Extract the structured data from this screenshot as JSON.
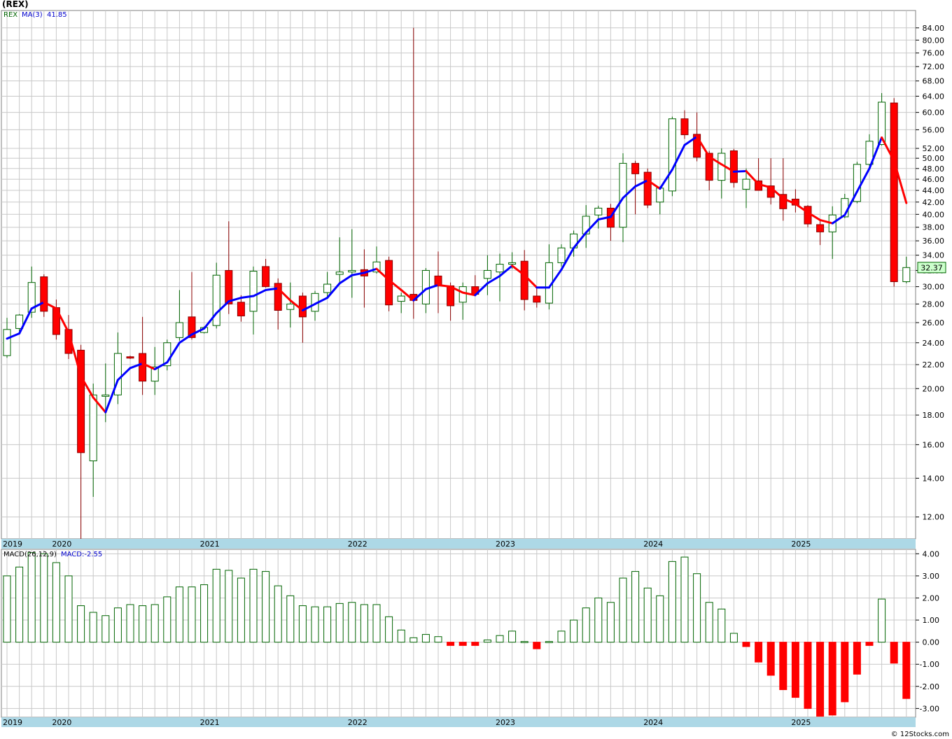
{
  "page": {
    "title": "(REX)",
    "footer": "© 12Stocks.com"
  },
  "legend": {
    "symbol": "REX",
    "ma_label": "MA(3)",
    "ma_value": "41.85",
    "macd_params": "MACD(26,12,9)",
    "macd_value": "MACD:-2.55",
    "last_price": "32.37"
  },
  "colors": {
    "up_candle": "#ffffff",
    "up_outline": "#006400",
    "down_candle": "#ff0000",
    "down_outline": "#8b0000",
    "ma_up": "#0000ff",
    "ma_down": "#ff0000",
    "grid": "#c8c8c8",
    "time_bar": "#add8e6",
    "hist_pos_outline": "#006400",
    "hist_neg": "#ff0000"
  },
  "chart_data": [
    {
      "type": "candlestick",
      "scale": "log",
      "period": "monthly",
      "ylim": [
        11,
        90
      ],
      "y_ticks": [
        "12.00",
        "14.00",
        "16.00",
        "18.00",
        "20.00",
        "22.00",
        "24.00",
        "26.00",
        "28.00",
        "30.00",
        "32.00",
        "34.00",
        "36.00",
        "38.00",
        "40.00",
        "42.00",
        "44.00",
        "46.00",
        "48.00",
        "50.00",
        "52.00",
        "56.00",
        "60.00",
        "64.00",
        "68.00",
        "72.00",
        "76.00",
        "80.00",
        "84.00"
      ],
      "x_year_labels": [
        {
          "label": "2019",
          "index": 0
        },
        {
          "label": "2020",
          "index": 4
        },
        {
          "label": "2021",
          "index": 16
        },
        {
          "label": "2022",
          "index": 28
        },
        {
          "label": "2023",
          "index": 40
        },
        {
          "label": "2024",
          "index": 52
        },
        {
          "label": "2025",
          "index": 64
        }
      ],
      "candles": [
        {
          "o": 22.8,
          "h": 26.5,
          "l": 22.6,
          "c": 25.3
        },
        {
          "o": 25.4,
          "h": 26.9,
          "l": 25.1,
          "c": 26.8
        },
        {
          "o": 27.1,
          "h": 32.5,
          "l": 26.5,
          "c": 30.5
        },
        {
          "o": 31.2,
          "h": 31.5,
          "l": 26.6,
          "c": 27.2
        },
        {
          "o": 27.6,
          "h": 28.5,
          "l": 24.3,
          "c": 24.8
        },
        {
          "o": 25.3,
          "h": 26.8,
          "l": 22.5,
          "c": 23.0
        },
        {
          "o": 23.3,
          "h": 23.8,
          "l": 11.0,
          "c": 15.5
        },
        {
          "o": 15.0,
          "h": 20.4,
          "l": 13.0,
          "c": 19.5
        },
        {
          "o": 19.4,
          "h": 22.1,
          "l": 17.5,
          "c": 19.5
        },
        {
          "o": 19.5,
          "h": 25.0,
          "l": 18.8,
          "c": 23.0
        },
        {
          "o": 22.7,
          "h": 22.8,
          "l": 22.5,
          "c": 22.6
        },
        {
          "o": 23.0,
          "h": 26.6,
          "l": 19.5,
          "c": 20.6
        },
        {
          "o": 20.6,
          "h": 23.6,
          "l": 19.5,
          "c": 21.8
        },
        {
          "o": 21.9,
          "h": 24.3,
          "l": 21.5,
          "c": 24.0
        },
        {
          "o": 24.5,
          "h": 29.6,
          "l": 24.2,
          "c": 26.0
        },
        {
          "o": 26.6,
          "h": 31.8,
          "l": 24.3,
          "c": 24.5
        },
        {
          "o": 25.0,
          "h": 25.6,
          "l": 24.9,
          "c": 25.5
        },
        {
          "o": 25.7,
          "h": 33.0,
          "l": 25.4,
          "c": 31.4
        },
        {
          "o": 32.0,
          "h": 38.9,
          "l": 26.9,
          "c": 28.0
        },
        {
          "o": 28.2,
          "h": 29.0,
          "l": 26.1,
          "c": 26.7
        },
        {
          "o": 27.2,
          "h": 32.5,
          "l": 24.8,
          "c": 31.9
        },
        {
          "o": 32.5,
          "h": 33.5,
          "l": 29.9,
          "c": 30.0
        },
        {
          "o": 30.4,
          "h": 31.0,
          "l": 25.3,
          "c": 27.3
        },
        {
          "o": 27.4,
          "h": 30.5,
          "l": 25.5,
          "c": 28.0
        },
        {
          "o": 28.9,
          "h": 29.3,
          "l": 24.0,
          "c": 26.6
        },
        {
          "o": 27.2,
          "h": 29.5,
          "l": 26.2,
          "c": 29.2
        },
        {
          "o": 29.3,
          "h": 31.8,
          "l": 28.8,
          "c": 30.3
        },
        {
          "o": 31.5,
          "h": 36.5,
          "l": 30.3,
          "c": 31.8
        },
        {
          "o": 31.8,
          "h": 37.7,
          "l": 28.7,
          "c": 32.0
        },
        {
          "o": 32.1,
          "h": 34.8,
          "l": 27.6,
          "c": 31.3
        },
        {
          "o": 31.8,
          "h": 35.2,
          "l": 31.6,
          "c": 33.1
        },
        {
          "o": 33.3,
          "h": 33.8,
          "l": 27.2,
          "c": 27.9
        },
        {
          "o": 28.3,
          "h": 29.3,
          "l": 27.0,
          "c": 28.9
        },
        {
          "o": 29.1,
          "h": 84.0,
          "l": 26.4,
          "c": 28.4
        },
        {
          "o": 28.0,
          "h": 32.3,
          "l": 27.0,
          "c": 32.0
        },
        {
          "o": 31.3,
          "h": 34.5,
          "l": 27.0,
          "c": 30.1
        },
        {
          "o": 30.1,
          "h": 30.5,
          "l": 26.2,
          "c": 27.8
        },
        {
          "o": 28.2,
          "h": 30.5,
          "l": 26.3,
          "c": 30.0
        },
        {
          "o": 30.0,
          "h": 31.4,
          "l": 29.1,
          "c": 29.1
        },
        {
          "o": 31.0,
          "h": 34.0,
          "l": 29.0,
          "c": 32.0
        },
        {
          "o": 31.8,
          "h": 34.2,
          "l": 28.3,
          "c": 32.8
        },
        {
          "o": 32.8,
          "h": 34.4,
          "l": 32.2,
          "c": 33.0
        },
        {
          "o": 33.2,
          "h": 34.7,
          "l": 27.3,
          "c": 28.5
        },
        {
          "o": 28.9,
          "h": 29.8,
          "l": 27.6,
          "c": 28.2
        },
        {
          "o": 28.1,
          "h": 35.5,
          "l": 27.4,
          "c": 33.0
        },
        {
          "o": 33.0,
          "h": 35.5,
          "l": 32.5,
          "c": 35.0
        },
        {
          "o": 35.0,
          "h": 37.5,
          "l": 33.8,
          "c": 37.0
        },
        {
          "o": 37.0,
          "h": 41.5,
          "l": 35.0,
          "c": 39.7
        },
        {
          "o": 39.9,
          "h": 41.4,
          "l": 37.8,
          "c": 41.0
        },
        {
          "o": 41.0,
          "h": 41.7,
          "l": 36.0,
          "c": 38.0
        },
        {
          "o": 38.0,
          "h": 51.0,
          "l": 35.8,
          "c": 49.0
        },
        {
          "o": 49.0,
          "h": 49.5,
          "l": 40.0,
          "c": 47.0
        },
        {
          "o": 47.3,
          "h": 48.0,
          "l": 41.0,
          "c": 41.5
        },
        {
          "o": 42.0,
          "h": 44.7,
          "l": 40.0,
          "c": 44.4
        },
        {
          "o": 43.9,
          "h": 59.0,
          "l": 43.0,
          "c": 58.5
        },
        {
          "o": 58.5,
          "h": 60.5,
          "l": 54.0,
          "c": 54.9
        },
        {
          "o": 55.0,
          "h": 60.0,
          "l": 49.4,
          "c": 50.2
        },
        {
          "o": 51.0,
          "h": 51.5,
          "l": 44.0,
          "c": 45.8
        },
        {
          "o": 45.8,
          "h": 52.0,
          "l": 42.6,
          "c": 51.0
        },
        {
          "o": 51.5,
          "h": 51.9,
          "l": 44.5,
          "c": 45.4
        },
        {
          "o": 44.2,
          "h": 48.0,
          "l": 41.0,
          "c": 46.0
        },
        {
          "o": 45.7,
          "h": 50.0,
          "l": 44.0,
          "c": 44.0
        },
        {
          "o": 44.8,
          "h": 50.0,
          "l": 41.6,
          "c": 42.8
        },
        {
          "o": 43.3,
          "h": 50.0,
          "l": 39.0,
          "c": 40.9
        },
        {
          "o": 42.5,
          "h": 44.2,
          "l": 40.3,
          "c": 41.5
        },
        {
          "o": 41.3,
          "h": 41.5,
          "l": 38.0,
          "c": 38.5
        },
        {
          "o": 38.4,
          "h": 39.0,
          "l": 35.4,
          "c": 37.3
        },
        {
          "o": 37.3,
          "h": 41.3,
          "l": 33.5,
          "c": 39.9
        },
        {
          "o": 39.6,
          "h": 43.4,
          "l": 39.4,
          "c": 42.6
        },
        {
          "o": 42.1,
          "h": 49.3,
          "l": 41.8,
          "c": 48.8
        },
        {
          "o": 48.8,
          "h": 55.0,
          "l": 48.0,
          "c": 53.5
        },
        {
          "o": 52.8,
          "h": 64.8,
          "l": 52.6,
          "c": 62.5
        },
        {
          "o": 62.3,
          "h": 63.5,
          "l": 30.0,
          "c": 30.6
        },
        {
          "o": 30.6,
          "h": 33.8,
          "l": 30.4,
          "c": 32.37
        }
      ],
      "ma3": [
        {
          "i": 0,
          "v": 24.4
        },
        {
          "i": 1,
          "v": 24.9
        },
        {
          "i": 2,
          "v": 27.5
        },
        {
          "i": 3,
          "v": 28.2
        },
        {
          "i": 4,
          "v": 27.5
        },
        {
          "i": 5,
          "v": 25.0
        },
        {
          "i": 6,
          "v": 21.0
        },
        {
          "i": 7,
          "v": 19.3
        },
        {
          "i": 8,
          "v": 18.2
        },
        {
          "i": 9,
          "v": 20.7
        },
        {
          "i": 10,
          "v": 21.7
        },
        {
          "i": 11,
          "v": 22.1
        },
        {
          "i": 12,
          "v": 21.6
        },
        {
          "i": 13,
          "v": 22.2
        },
        {
          "i": 14,
          "v": 24.0
        },
        {
          "i": 15,
          "v": 24.8
        },
        {
          "i": 16,
          "v": 25.4
        },
        {
          "i": 17,
          "v": 27.0
        },
        {
          "i": 18,
          "v": 28.3
        },
        {
          "i": 19,
          "v": 28.7
        },
        {
          "i": 20,
          "v": 28.9
        },
        {
          "i": 21,
          "v": 29.6
        },
        {
          "i": 22,
          "v": 29.8
        },
        {
          "i": 23,
          "v": 28.4
        },
        {
          "i": 24,
          "v": 27.3
        },
        {
          "i": 25,
          "v": 28.0
        },
        {
          "i": 26,
          "v": 28.7
        },
        {
          "i": 27,
          "v": 30.4
        },
        {
          "i": 28,
          "v": 31.4
        },
        {
          "i": 29,
          "v": 31.7
        },
        {
          "i": 30,
          "v": 32.2
        },
        {
          "i": 31,
          "v": 30.8
        },
        {
          "i": 32,
          "v": 29.6
        },
        {
          "i": 33,
          "v": 28.4
        },
        {
          "i": 34,
          "v": 29.7
        },
        {
          "i": 35,
          "v": 30.2
        },
        {
          "i": 36,
          "v": 30.0
        },
        {
          "i": 37,
          "v": 29.3
        },
        {
          "i": 38,
          "v": 29.0
        },
        {
          "i": 39,
          "v": 30.4
        },
        {
          "i": 40,
          "v": 31.3
        },
        {
          "i": 41,
          "v": 32.6
        },
        {
          "i": 42,
          "v": 31.4
        },
        {
          "i": 43,
          "v": 29.9
        },
        {
          "i": 44,
          "v": 29.9
        },
        {
          "i": 45,
          "v": 32.1
        },
        {
          "i": 46,
          "v": 35.0
        },
        {
          "i": 47,
          "v": 37.2
        },
        {
          "i": 48,
          "v": 39.2
        },
        {
          "i": 49,
          "v": 39.6
        },
        {
          "i": 50,
          "v": 42.7
        },
        {
          "i": 51,
          "v": 44.7
        },
        {
          "i": 52,
          "v": 45.8
        },
        {
          "i": 53,
          "v": 44.3
        },
        {
          "i": 54,
          "v": 47.8
        },
        {
          "i": 55,
          "v": 52.7
        },
        {
          "i": 56,
          "v": 54.5
        },
        {
          "i": 57,
          "v": 50.3
        },
        {
          "i": 58,
          "v": 48.8
        },
        {
          "i": 59,
          "v": 47.4
        },
        {
          "i": 60,
          "v": 47.5
        },
        {
          "i": 61,
          "v": 45.1
        },
        {
          "i": 62,
          "v": 44.5
        },
        {
          "i": 63,
          "v": 42.6
        },
        {
          "i": 64,
          "v": 41.7
        },
        {
          "i": 65,
          "v": 40.3
        },
        {
          "i": 66,
          "v": 39.1
        },
        {
          "i": 67,
          "v": 38.6
        },
        {
          "i": 68,
          "v": 39.9
        },
        {
          "i": 69,
          "v": 43.8
        },
        {
          "i": 70,
          "v": 48.0
        },
        {
          "i": 71,
          "v": 54.3
        },
        {
          "i": 72,
          "v": 49.5
        },
        {
          "i": 73,
          "v": 41.85
        }
      ]
    },
    {
      "type": "bar",
      "title": "MACD(26,12,9)",
      "ylim": [
        -3.4,
        4.2
      ],
      "y_ticks": [
        "4.00",
        "3.00",
        "2.00",
        "1.00",
        "0.00",
        "-1.00",
        "-2.00",
        "-3.00"
      ],
      "values": [
        3.0,
        3.4,
        4.05,
        4.0,
        3.6,
        3.0,
        1.65,
        1.35,
        1.2,
        1.55,
        1.7,
        1.65,
        1.7,
        2.05,
        2.5,
        2.5,
        2.6,
        3.3,
        3.25,
        2.9,
        3.3,
        3.2,
        2.55,
        2.1,
        1.65,
        1.6,
        1.6,
        1.75,
        1.8,
        1.7,
        1.7,
        1.15,
        0.55,
        0.2,
        0.35,
        0.25,
        -0.15,
        -0.15,
        -0.15,
        0.1,
        0.3,
        0.5,
        0.03,
        -0.3,
        0.03,
        0.5,
        1.0,
        1.55,
        2.0,
        1.8,
        2.9,
        3.2,
        2.45,
        2.1,
        3.65,
        3.85,
        3.1,
        1.8,
        1.5,
        0.4,
        -0.2,
        -0.9,
        -1.5,
        -2.15,
        -2.5,
        -3.0,
        -3.35,
        -3.3,
        -2.7,
        -1.45,
        -0.15,
        1.95,
        -0.95,
        -2.55
      ]
    }
  ]
}
